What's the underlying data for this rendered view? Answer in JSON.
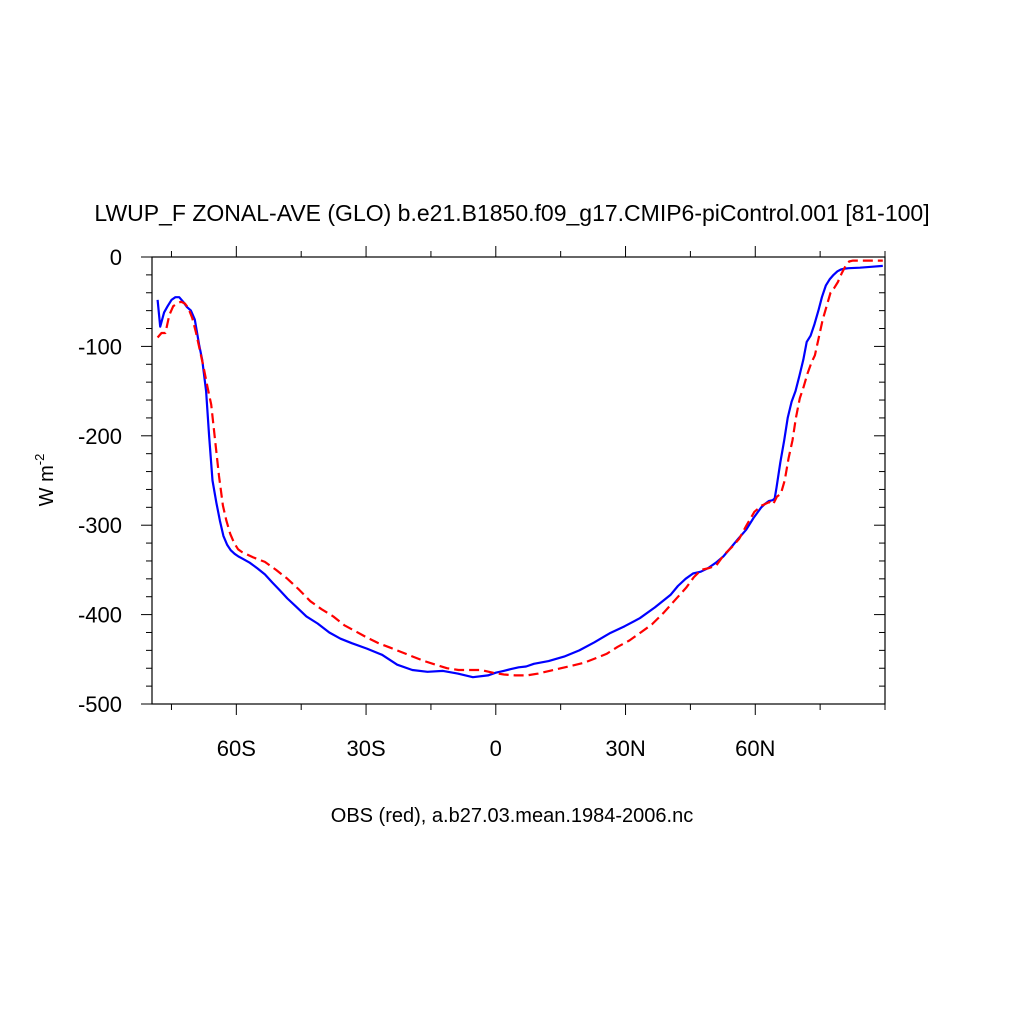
{
  "chart_data": {
    "type": "line",
    "title": "LWUP_F ZONAL-AVE (GLO) b.e21.B1850.f09_g17.CMIP6-piControl.001 [81-100]",
    "xlabel": "OBS (red), a.b27.03.mean.1984-2006.nc",
    "ylabel": "W m",
    "ylabel_superscript": "-2",
    "xlim": [
      -79.5,
      90
    ],
    "ylim": [
      -500,
      0
    ],
    "x_ticks": [
      -60,
      -30,
      0,
      30,
      60
    ],
    "x_tick_labels": [
      "60S",
      "30S",
      "0",
      "30N",
      "60N"
    ],
    "y_ticks": [
      0,
      -100,
      -200,
      -300,
      -400,
      -500
    ],
    "y_tick_labels": [
      "0",
      "-100",
      "-200",
      "-300",
      "-400",
      "-500"
    ],
    "grid": false,
    "series": [
      {
        "color": "#0000ff",
        "dash": "solid",
        "x": [
          -78.2,
          -77.6,
          -76.7,
          -75.9,
          -75.0,
          -74.1,
          -73.2,
          -72.3,
          -71.4,
          -70.5,
          -69.6,
          -68.6,
          -67.9,
          -67.0,
          -66.3,
          -65.5,
          -64.6,
          -63.8,
          -63.0,
          -62.1,
          -61.3,
          -60.4,
          -59.5,
          -58.7,
          -56.9,
          -55.2,
          -53.4,
          -51.7,
          -49.9,
          -48.2,
          -46.4,
          -43.8,
          -41.2,
          -38.5,
          -35.9,
          -33.3,
          -29.8,
          -26.3,
          -22.8,
          -19.3,
          -15.8,
          -12.2,
          -8.8,
          -5.3,
          -1.8,
          0.0,
          1.8,
          3.5,
          5.3,
          7.0,
          8.8,
          12.2,
          15.8,
          19.3,
          22.8,
          26.3,
          29.8,
          33.3,
          36.8,
          40.4,
          42.1,
          43.9,
          45.6,
          47.4,
          49.1,
          50.9,
          52.6,
          54.4,
          56.1,
          57.9,
          59.6,
          61.4,
          62.3,
          63.1,
          64.0,
          64.5,
          64.9,
          65.8,
          66.7,
          67.5,
          68.4,
          69.3,
          70.2,
          71.1,
          71.9,
          72.8,
          73.7,
          74.6,
          75.4,
          76.3,
          77.2,
          78.1,
          79.0,
          79.8,
          80.7,
          81.6,
          84.2,
          86.8,
          89.5
        ],
        "y": [
          -48,
          -78,
          -62,
          -55,
          -48,
          -45,
          -45,
          -50,
          -56,
          -60,
          -70,
          -98,
          -115,
          -150,
          -200,
          -250,
          -275,
          -295,
          -312,
          -322,
          -328,
          -332,
          -335,
          -337,
          -342,
          -348,
          -355,
          -364,
          -373,
          -382,
          -390,
          -402,
          -410,
          -420,
          -427,
          -432,
          -438,
          -445,
          -456,
          -462,
          -464,
          -463,
          -466,
          -470,
          -468,
          -465,
          -463,
          -461,
          -459,
          -458,
          -455,
          -452,
          -447,
          -440,
          -431,
          -421,
          -413,
          -404,
          -392,
          -378,
          -368,
          -360,
          -354,
          -352,
          -348,
          -342,
          -335,
          -325,
          -315,
          -305,
          -292,
          -280,
          -276,
          -273,
          -272,
          -270,
          -258,
          -230,
          -205,
          -180,
          -162,
          -150,
          -133,
          -115,
          -95,
          -88,
          -75,
          -60,
          -45,
          -32,
          -25,
          -20,
          -16,
          -14,
          -13,
          -12.5,
          -12,
          -11,
          -10
        ]
      },
      {
        "color": "#ff0000",
        "dash": "dashed",
        "x": [
          -78.2,
          -77.3,
          -76.4,
          -75.5,
          -74.6,
          -73.7,
          -72.8,
          -71.9,
          -71.1,
          -70.2,
          -69.3,
          -68.4,
          -67.5,
          -66.7,
          -65.8,
          -64.9,
          -64.0,
          -63.1,
          -62.3,
          -61.4,
          -60.5,
          -59.6,
          -58.7,
          -56.1,
          -53.4,
          -50.8,
          -48.2,
          -45.5,
          -42.9,
          -40.3,
          -37.6,
          -35.0,
          -32.3,
          -29.7,
          -27.1,
          -24.4,
          -21.8,
          -19.2,
          -16.5,
          -13.9,
          -11.3,
          -8.6,
          -6.0,
          -3.4,
          -0.7,
          1.9,
          4.5,
          7.2,
          9.8,
          12.4,
          15.1,
          17.7,
          20.3,
          23.0,
          25.6,
          28.2,
          30.9,
          33.5,
          36.1,
          38.8,
          41.4,
          44.0,
          45.8,
          47.5,
          49.3,
          51.0,
          52.8,
          54.5,
          56.3,
          58.0,
          59.8,
          61.5,
          63.3,
          64.1,
          65.0,
          65.9,
          66.8,
          67.7,
          68.6,
          69.4,
          70.3,
          71.2,
          72.1,
          73.0,
          73.8,
          74.7,
          75.6,
          76.5,
          77.4,
          78.2,
          79.1,
          80.0,
          80.9,
          81.7,
          82.6,
          83.5,
          85.2,
          87.0,
          89.5
        ],
        "y": [
          -90,
          -85,
          -85,
          -65,
          -55,
          -52,
          -50,
          -52,
          -57,
          -68,
          -85,
          -105,
          -125,
          -145,
          -165,
          -205,
          -245,
          -278,
          -295,
          -310,
          -320,
          -327,
          -330,
          -336,
          -341,
          -350,
          -360,
          -372,
          -385,
          -394,
          -402,
          -412,
          -419,
          -426,
          -432,
          -437,
          -442,
          -447,
          -452,
          -456,
          -460,
          -462,
          -462,
          -462,
          -465,
          -467,
          -468,
          -468,
          -466,
          -463,
          -460,
          -457,
          -454,
          -449,
          -444,
          -436,
          -429,
          -420,
          -411,
          -398,
          -384,
          -370,
          -358,
          -350,
          -348,
          -345,
          -333,
          -325,
          -315,
          -300,
          -285,
          -278,
          -274,
          -277,
          -268,
          -265,
          -250,
          -225,
          -205,
          -180,
          -158,
          -145,
          -130,
          -118,
          -110,
          -90,
          -70,
          -55,
          -40,
          -35,
          -28,
          -18,
          -10,
          -5,
          -4,
          -4,
          -4,
          -4,
          -4
        ]
      }
    ]
  }
}
